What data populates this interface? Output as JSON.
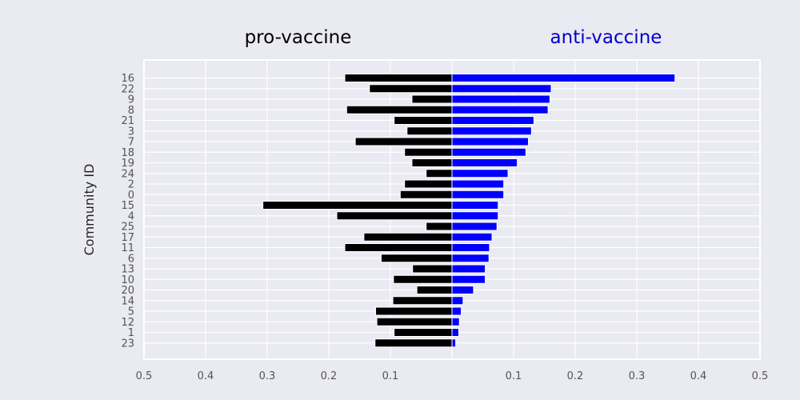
{
  "chart_data": {
    "type": "bar",
    "orientation": "horizontal-diverging",
    "ylabel": "Community ID",
    "left_title": "pro-vaccine",
    "right_title": "anti-vaccine",
    "colors": {
      "left": "#000000",
      "right": "#0000ff",
      "right_title": "#0000cc",
      "background": "#eaeaf2",
      "grid": "#ffffff"
    },
    "xlim": [
      -0.5,
      0.5
    ],
    "x_ticks": [
      -0.5,
      -0.4,
      -0.3,
      -0.2,
      -0.1,
      0.1,
      0.2,
      0.3,
      0.4,
      0.5
    ],
    "x_tick_labels": [
      "0.5",
      "0.4",
      "0.3",
      "0.2",
      "0.1",
      "0.1",
      "0.2",
      "0.3",
      "0.4",
      "0.5"
    ],
    "grid": true,
    "categories": [
      "16",
      "22",
      "9",
      "8",
      "21",
      "3",
      "7",
      "18",
      "19",
      "24",
      "2",
      "0",
      "15",
      "4",
      "25",
      "17",
      "11",
      "6",
      "13",
      "10",
      "20",
      "14",
      "5",
      "12",
      "1",
      "23"
    ],
    "series": [
      {
        "key": "pro",
        "values": [
          0.174,
          0.134,
          0.065,
          0.171,
          0.094,
          0.073,
          0.157,
          0.077,
          0.065,
          0.042,
          0.077,
          0.084,
          0.307,
          0.187,
          0.042,
          0.143,
          0.174,
          0.115,
          0.064,
          0.095,
          0.057,
          0.096,
          0.124,
          0.122,
          0.094,
          0.125
        ]
      },
      {
        "key": "anti",
        "values": [
          0.362,
          0.161,
          0.159,
          0.156,
          0.133,
          0.129,
          0.124,
          0.12,
          0.106,
          0.091,
          0.084,
          0.084,
          0.075,
          0.075,
          0.073,
          0.065,
          0.061,
          0.06,
          0.054,
          0.054,
          0.035,
          0.018,
          0.015,
          0.012,
          0.011,
          0.006
        ]
      }
    ]
  }
}
